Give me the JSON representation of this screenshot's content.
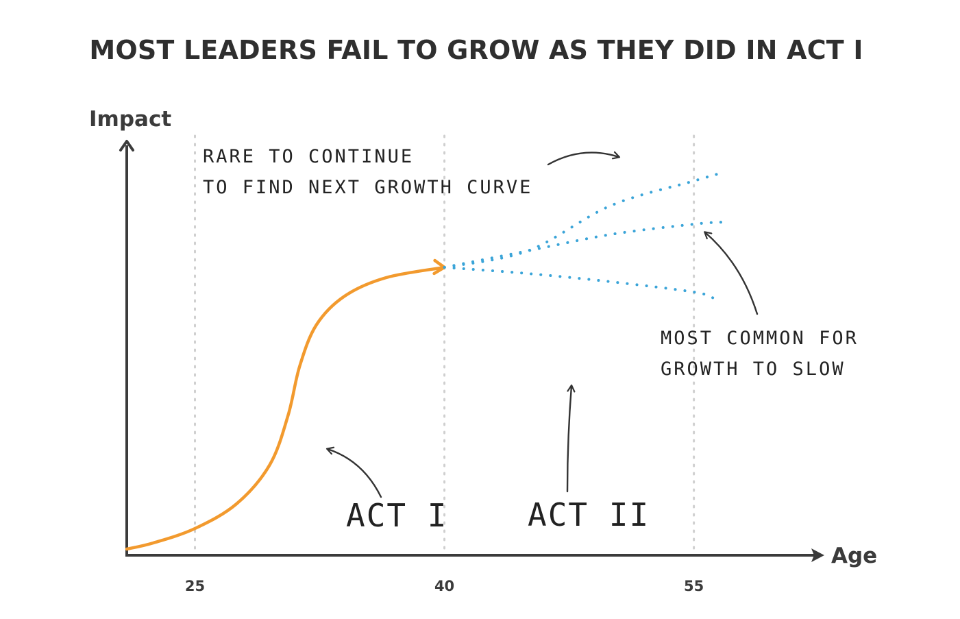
{
  "chart_data": {
    "type": "line",
    "title": "MOST LEADERS FAIL TO GROW AS THEY DID IN ACT I",
    "xlabel": "Age",
    "ylabel": "Impact",
    "x_ticks": [
      25,
      40,
      55
    ],
    "xlim": [
      20.9,
      58.0
    ],
    "ylim": [
      0,
      100
    ],
    "grid": "vertical dotted lines at x ticks",
    "colors": {
      "act_curve": "#f29a2e",
      "projection": "#3aa4d8",
      "axis": "#3b3b3b",
      "grid": "#cfcfcf",
      "annotation": "#333333"
    },
    "series": [
      {
        "style": "solid",
        "points": [
          [
            20.9,
            1.5
          ],
          [
            22.5,
            3.0
          ],
          [
            25.0,
            6.5
          ],
          [
            27.5,
            12.5
          ],
          [
            29.5,
            22.0
          ],
          [
            30.6,
            34.0
          ],
          [
            31.3,
            46.0
          ],
          [
            32.3,
            56.0
          ],
          [
            34.0,
            63.0
          ],
          [
            36.5,
            67.5
          ],
          [
            40.0,
            70.0
          ]
        ]
      },
      {
        "style": "dotted",
        "points": [
          [
            40.0,
            70.0
          ],
          [
            45.0,
            74.0
          ],
          [
            50.0,
            85.0
          ],
          [
            55.0,
            91.0
          ],
          [
            56.7,
            93.0
          ]
        ]
      },
      {
        "style": "dotted",
        "points": [
          [
            40.0,
            70.0
          ],
          [
            45.0,
            74.0
          ],
          [
            50.0,
            78.0
          ],
          [
            55.0,
            80.5
          ],
          [
            56.7,
            81.0
          ]
        ]
      },
      {
        "style": "dotted",
        "points": [
          [
            40.0,
            70.0
          ],
          [
            45.0,
            68.5
          ],
          [
            50.0,
            66.5
          ],
          [
            55.0,
            64.0
          ],
          [
            56.2,
            62.5
          ]
        ]
      }
    ],
    "annotations": [
      {
        "lines": [
          "RARE TO CONTINUE",
          "TO FIND NEXT GROWTH CURVE"
        ]
      },
      {
        "lines": [
          "MOST COMMON FOR",
          "GROWTH TO SLOW"
        ]
      },
      {
        "lines": [
          "ACT I"
        ]
      },
      {
        "lines": [
          "ACT II"
        ]
      }
    ]
  }
}
